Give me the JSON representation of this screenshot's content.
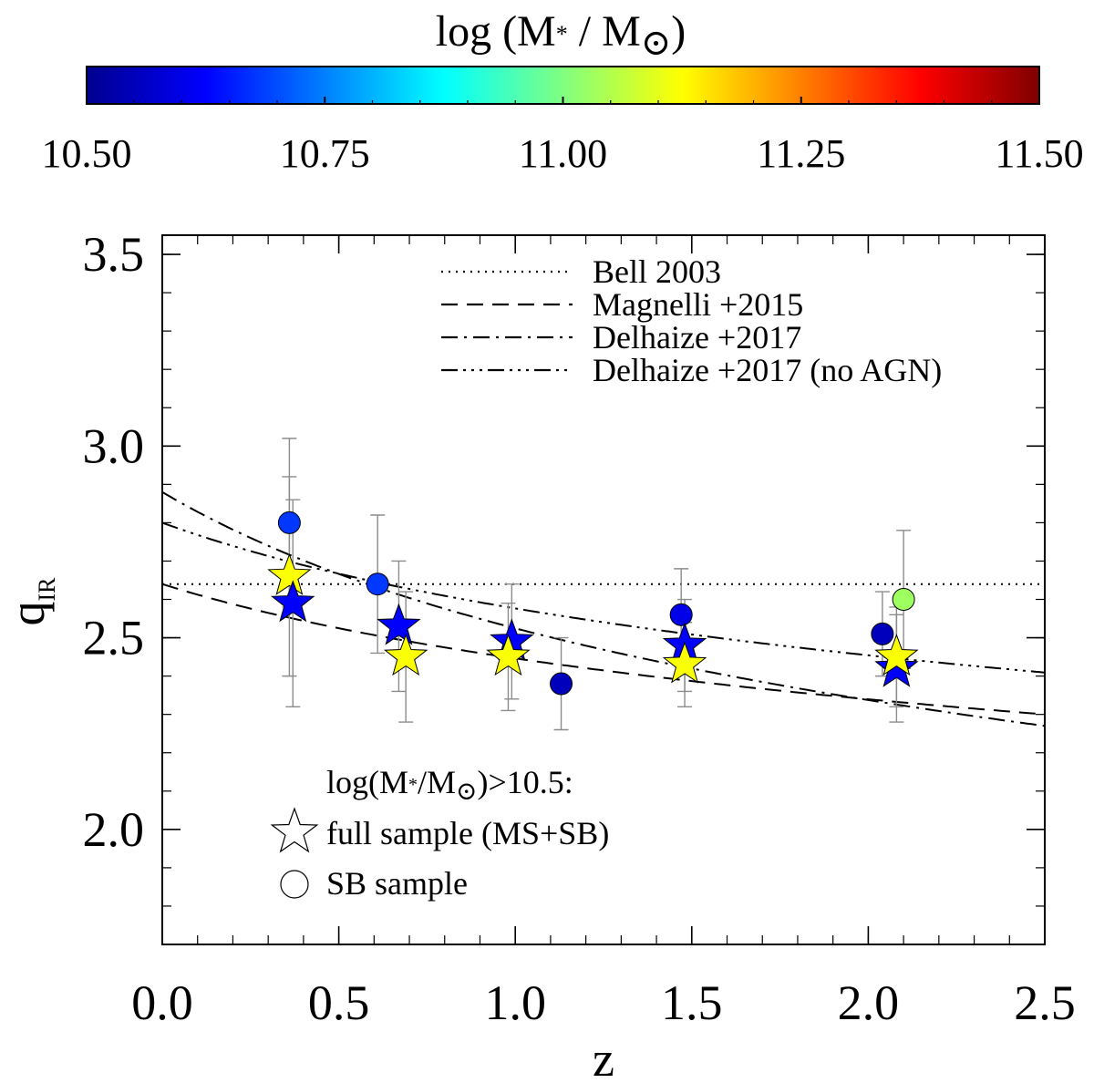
{
  "colorbar": {
    "title_prefix": "log (M",
    "title_sub": "*",
    "title_mid": " / M",
    "title_sun": "⊙",
    "title_suffix": ")",
    "min": 10.5,
    "max": 11.5,
    "ticks": [
      10.5,
      10.75,
      11.0,
      11.25,
      11.5
    ],
    "tick_labels": [
      "10.50",
      "10.75",
      "11.00",
      "11.25",
      "11.50"
    ],
    "colormap": [
      "#00008f",
      "#0000ff",
      "#0080ff",
      "#00ffff",
      "#80ff80",
      "#ffff00",
      "#ff8000",
      "#ff0000",
      "#800000"
    ]
  },
  "chart_data": {
    "type": "scatter",
    "xlabel": "z",
    "ylabel": "q",
    "ylabel_sub": "IR",
    "xlim": [
      0.0,
      2.5
    ],
    "ylim": [
      1.7,
      3.55
    ],
    "x_ticks": [
      0.0,
      0.5,
      1.0,
      1.5,
      2.0,
      2.5
    ],
    "x_tick_labels": [
      "0.0",
      "0.5",
      "1.0",
      "1.5",
      "2.0",
      "2.5"
    ],
    "y_ticks": [
      2.0,
      2.5,
      3.0,
      3.5
    ],
    "y_tick_labels": [
      "2.0",
      "2.5",
      "3.0",
      "3.5"
    ],
    "lines": [
      {
        "name": "Bell 2003",
        "style": "dotted",
        "model": "constant",
        "a": 2.64
      },
      {
        "name": "Magnelli +2015",
        "style": "dashed",
        "model": "power",
        "a": 2.64,
        "b": -0.11
      },
      {
        "name": "Delhaize +2017",
        "style": "dashdot",
        "model": "power",
        "a": 2.88,
        "b": -0.19
      },
      {
        "name": "Delhaize +2017 (no AGN)",
        "style": "dashdotdotdot",
        "model": "power",
        "a": 2.8,
        "b": -0.12
      }
    ],
    "legend_position": "top-right",
    "series": [
      {
        "name": "full sample (MS+SB)",
        "marker": "star",
        "points": [
          {
            "z": 0.36,
            "q": 2.66,
            "err": 0.26,
            "logM": 11.12
          },
          {
            "z": 0.37,
            "q": 2.59,
            "err": 0.27,
            "logM": 10.62
          },
          {
            "z": 0.67,
            "q": 2.53,
            "err": 0.17,
            "logM": 10.62
          },
          {
            "z": 0.69,
            "q": 2.45,
            "err": 0.17,
            "logM": 11.12
          },
          {
            "z": 0.99,
            "q": 2.49,
            "err": 0.15,
            "logM": 10.62
          },
          {
            "z": 0.98,
            "q": 2.45,
            "err": 0.14,
            "logM": 11.12
          },
          {
            "z": 1.48,
            "q": 2.48,
            "err": 0.12,
            "logM": 10.62
          },
          {
            "z": 1.48,
            "q": 2.43,
            "err": 0.11,
            "logM": 11.12
          },
          {
            "z": 2.08,
            "q": 2.42,
            "err": 0.14,
            "logM": 10.62
          },
          {
            "z": 2.08,
            "q": 2.45,
            "err": 0.13,
            "logM": 11.12
          }
        ]
      },
      {
        "name": "SB sample",
        "marker": "circle",
        "points": [
          {
            "z": 0.36,
            "q": 2.8,
            "err": 0.22,
            "logM": 10.68
          },
          {
            "z": 0.61,
            "q": 2.64,
            "err": 0.18,
            "logM": 10.68
          },
          {
            "z": 1.13,
            "q": 2.38,
            "err": 0.12,
            "logM": 10.55
          },
          {
            "z": 1.47,
            "q": 2.56,
            "err": 0.12,
            "logM": 10.6
          },
          {
            "z": 2.04,
            "q": 2.51,
            "err": 0.11,
            "logM": 10.55
          },
          {
            "z": 2.1,
            "q": 2.6,
            "err": 0.18,
            "logM": 11.03
          }
        ]
      }
    ]
  },
  "legend2": {
    "heading_prefix": "log(M",
    "heading_sub": "*",
    "heading_mid": "/M",
    "heading_sun": "⊙",
    "heading_suffix": ")>10.5:",
    "star_label": "full sample (MS+SB)",
    "circle_label": "SB sample"
  }
}
